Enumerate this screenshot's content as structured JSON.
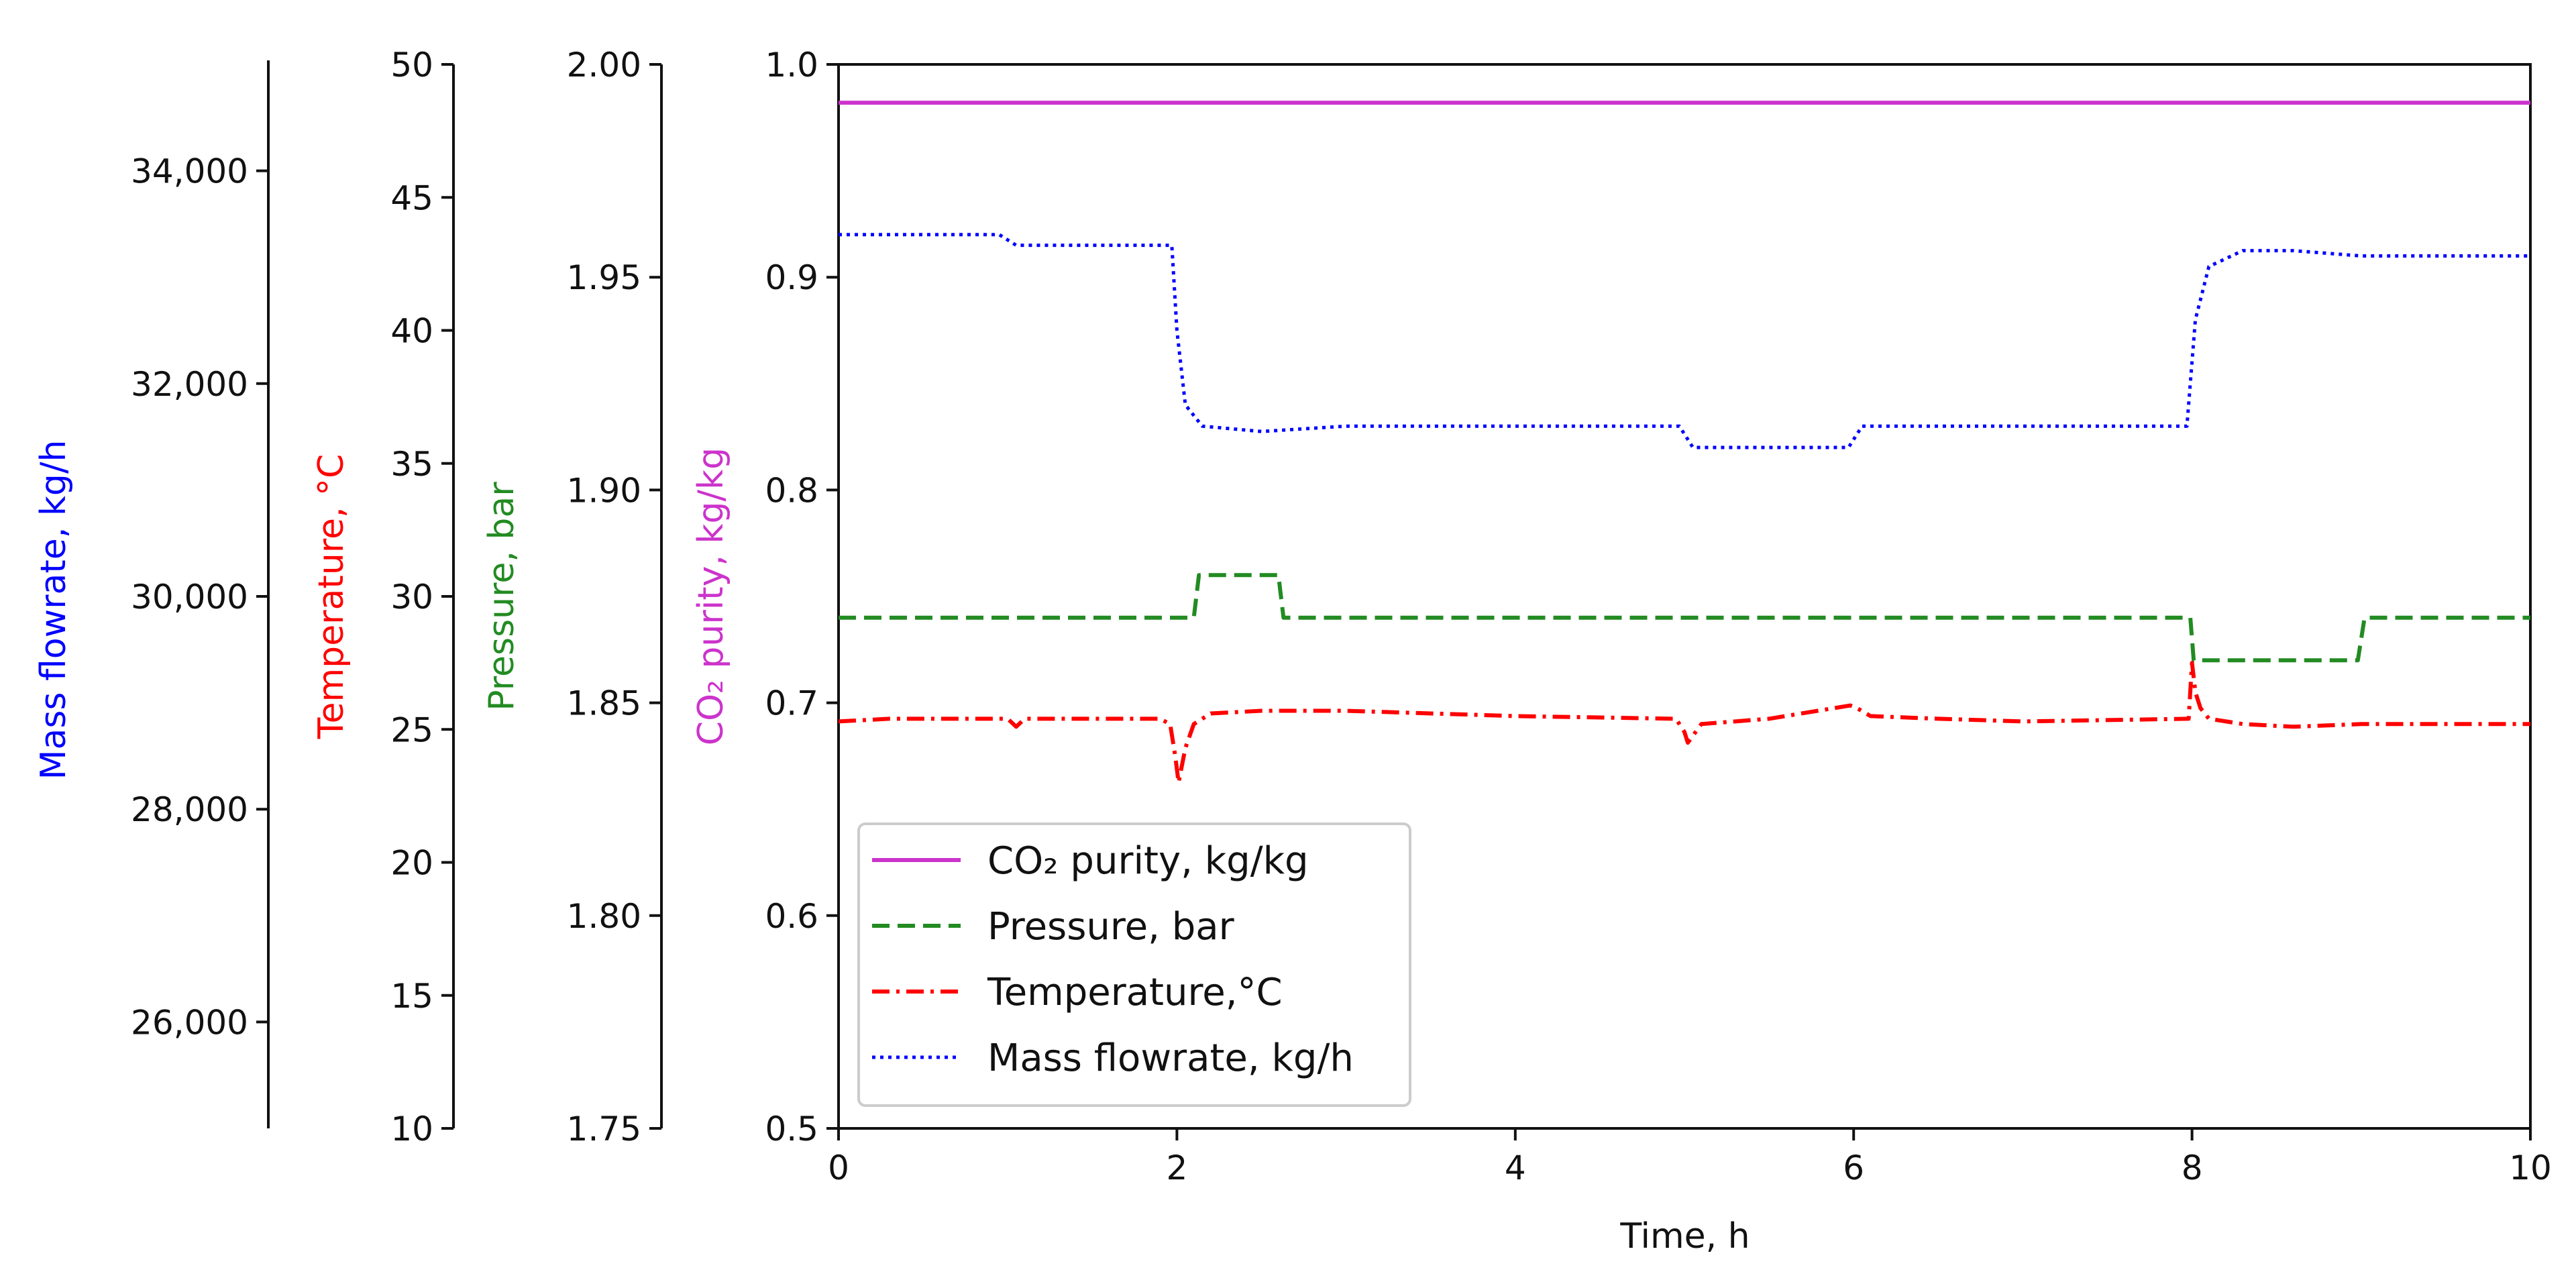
{
  "chart_data": {
    "type": "line",
    "xlabel": "Time, h",
    "x_ticks": [
      "0",
      "2",
      "4",
      "6",
      "8",
      "10"
    ],
    "xlim": [
      0,
      10
    ],
    "grid": false,
    "legend_position": "lower-left",
    "axes": [
      {
        "id": "purity",
        "label": "CO₂ purity, kg/kg",
        "color": "#cc33cc",
        "ylim": [
          0.5,
          1.0
        ],
        "ticks": [
          0.5,
          0.6,
          0.7,
          0.8,
          0.9,
          1.0
        ],
        "tick_labels": [
          "0.5",
          "0.6",
          "0.7",
          "0.8",
          "0.9",
          "1.0"
        ]
      },
      {
        "id": "pressure",
        "label": "Pressure, bar",
        "color": "#228b22",
        "ylim": [
          1.75,
          2.0
        ],
        "ticks": [
          1.75,
          1.8,
          1.85,
          1.9,
          1.95,
          2.0
        ],
        "tick_labels": [
          "1.75",
          "1.80",
          "1.85",
          "1.90",
          "1.95",
          "2.00"
        ]
      },
      {
        "id": "temperature",
        "label": "Temperature, °C",
        "color": "#ff0000",
        "ylim": [
          10,
          50
        ],
        "ticks": [
          10,
          15,
          20,
          25,
          30,
          35,
          40,
          45,
          50
        ],
        "tick_labels": [
          "10",
          "15",
          "20",
          "25",
          "30",
          "35",
          "40",
          "45",
          "50"
        ]
      },
      {
        "id": "flow",
        "label": "Mass flowrate, kg/h",
        "color": "#0000ff",
        "ylim": [
          25000,
          35000
        ],
        "ticks": [
          26000,
          28000,
          30000,
          32000,
          34000
        ],
        "tick_labels": [
          "26,000",
          "28,000",
          "30,000",
          "32,000",
          "34,000"
        ]
      }
    ],
    "series": [
      {
        "name": "CO₂ purity, kg/kg",
        "axis": "purity",
        "color": "#cc33cc",
        "dash": "solid",
        "x": [
          0,
          10
        ],
        "y": [
          0.982,
          0.982
        ]
      },
      {
        "name": "Pressure, bar",
        "axis": "pressure",
        "color": "#228b22",
        "dash": "dashed",
        "x": [
          0,
          2.1,
          2.13,
          2.6,
          2.63,
          7.99,
          8.01,
          8.98,
          9.02,
          10
        ],
        "y": [
          1.87,
          1.87,
          1.88,
          1.88,
          1.87,
          1.87,
          1.86,
          1.86,
          1.87,
          1.87
        ]
      },
      {
        "name": "Temperature,°C",
        "axis": "temperature",
        "color": "#ff0000",
        "dash": "dashdot",
        "x": [
          0,
          0.3,
          1.0,
          1.05,
          1.1,
          1.9,
          1.96,
          1.99,
          2.01,
          2.05,
          2.1,
          2.2,
          2.5,
          3.0,
          4.0,
          4.95,
          5.0,
          5.02,
          5.1,
          5.5,
          5.98,
          6.02,
          6.1,
          6.5,
          7.0,
          7.98,
          8.0,
          8.02,
          8.05,
          8.1,
          8.3,
          8.6,
          9.0,
          10
        ],
        "y": [
          25.3,
          25.4,
          25.4,
          25.1,
          25.4,
          25.4,
          25.2,
          24.0,
          23.0,
          24.3,
          25.2,
          25.6,
          25.7,
          25.7,
          25.5,
          25.4,
          24.9,
          24.5,
          25.2,
          25.4,
          25.9,
          25.8,
          25.5,
          25.4,
          25.3,
          25.4,
          27.5,
          26.4,
          25.8,
          25.4,
          25.2,
          25.1,
          25.2,
          25.2
        ]
      },
      {
        "name": "Mass flowrate, kg/h",
        "axis": "flow",
        "color": "#0000ff",
        "dash": "dotted",
        "x": [
          0,
          0.95,
          1.05,
          1.97,
          2.0,
          2.05,
          2.15,
          2.5,
          3.0,
          4.97,
          5.05,
          5.97,
          6.05,
          7.97,
          8.02,
          8.1,
          8.3,
          8.6,
          9.0,
          10
        ],
        "y": [
          33.4,
          33.4,
          33.3,
          33.3,
          32.5,
          31.8,
          31.6,
          31.55,
          31.6,
          31.6,
          31.4,
          31.4,
          31.6,
          31.6,
          32.6,
          33.1,
          33.25,
          33.25,
          33.2,
          33.2
        ]
      }
    ]
  }
}
